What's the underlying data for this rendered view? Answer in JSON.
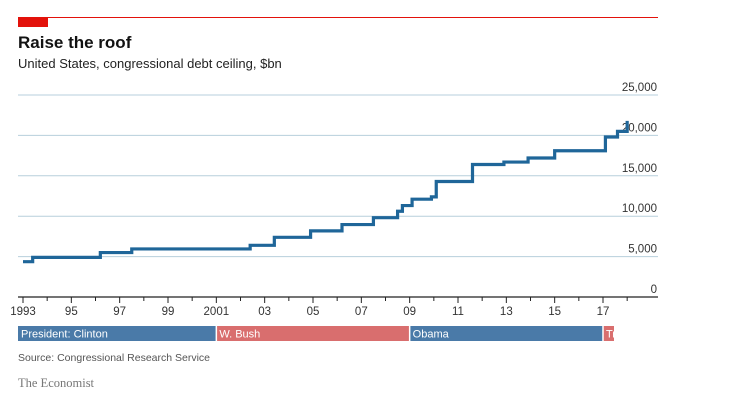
{
  "header": {
    "title": "Raise the roof",
    "subtitle": "United States, congressional debt ceiling, $bn"
  },
  "footer": {
    "source": "Source: Congressional Research Service",
    "brand": "The Economist"
  },
  "colors": {
    "accent": "#e3120b",
    "line": "#1f6699",
    "grid": "#b7cfdc",
    "democrat": "#4a7aa8",
    "republican": "#d96e6e"
  },
  "chart_data": {
    "type": "line",
    "step": true,
    "title": "Raise the roof",
    "subtitle": "United States, congressional debt ceiling, $bn",
    "ylim": [
      0,
      25000
    ],
    "yticks": [
      0,
      5000,
      10000,
      15000,
      20000,
      25000
    ],
    "ytick_labels": [
      "0",
      "5,000",
      "10,000",
      "15,000",
      "20,000",
      "25,000"
    ],
    "xlim": [
      1993,
      2018
    ],
    "xticks": [
      1993,
      1995,
      1997,
      1999,
      2001,
      2003,
      2005,
      2007,
      2009,
      2011,
      2013,
      2015,
      2017
    ],
    "xtick_labels": [
      "1993",
      "95",
      "97",
      "99",
      "2001",
      "03",
      "05",
      "07",
      "09",
      "11",
      "13",
      "15",
      "17"
    ],
    "grid": true,
    "series": [
      {
        "x": [
          1993.0,
          1993.4,
          1996.2,
          1997.5,
          2002.4,
          2003.4,
          2004.9,
          2006.2,
          2007.5,
          2008.5,
          2008.7,
          2009.1,
          2009.9,
          2010.1,
          2011.6,
          2012.9,
          2013.9,
          2015.0,
          2017.1,
          2017.6,
          2018.0
        ],
        "values": [
          4370,
          4900,
          5500,
          5950,
          6400,
          7384,
          8184,
          8965,
          9815,
          10615,
          11315,
          12104,
          12394,
          14294,
          16394,
          16700,
          17200,
          18100,
          19800,
          20500,
          21800
        ]
      }
    ],
    "presidents_label": "President:",
    "presidents": [
      {
        "name": "Clinton",
        "start": 1993,
        "end": 2001,
        "party": "D"
      },
      {
        "name": "W. Bush",
        "start": 2001,
        "end": 2009,
        "party": "R"
      },
      {
        "name": "Obama",
        "start": 2009,
        "end": 2017,
        "party": "D"
      },
      {
        "name": "Trump",
        "start": 2017,
        "end": 2018.5,
        "party": "R"
      }
    ]
  }
}
